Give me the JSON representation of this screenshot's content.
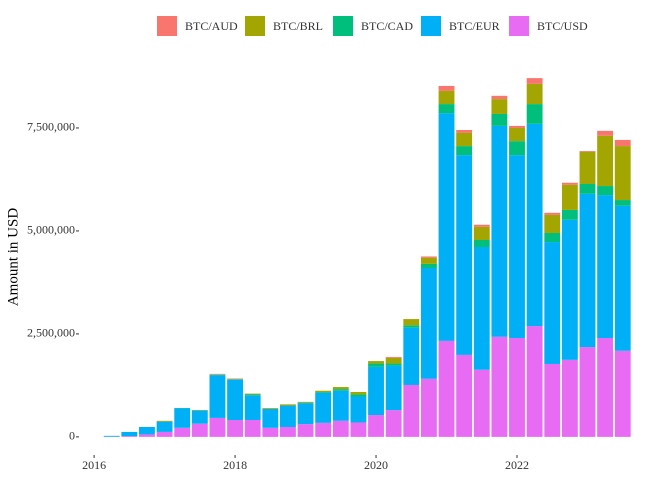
{
  "chart_data": {
    "type": "stacked_bar",
    "y_label": "Amount in USD",
    "x": [
      2016.25,
      2016.5,
      2016.75,
      2017,
      2017.25,
      2017.5,
      2017.75,
      2018,
      2018.25,
      2018.5,
      2018.75,
      2019,
      2019.25,
      2019.5,
      2019.75,
      2020,
      2020.25,
      2020.5,
      2020.75,
      2021,
      2021.25,
      2021.5,
      2021.75,
      2022,
      2022.25,
      2022.5,
      2022.75,
      2023,
      2023.25,
      2023.5
    ],
    "series": [
      {
        "name": "BTC/AUD",
        "color": "#F8766D",
        "values": [
          0,
          0,
          0,
          0,
          0,
          0,
          10000,
          10000,
          0,
          0,
          0,
          0,
          0,
          0,
          0,
          0,
          20000,
          0,
          30000,
          120000,
          70000,
          50000,
          80000,
          50000,
          140000,
          50000,
          50000,
          20000,
          120000,
          150000
        ]
      },
      {
        "name": "BTC/BRL",
        "color": "#A3A500",
        "values": [
          0,
          0,
          0,
          20000,
          0,
          10000,
          10000,
          10000,
          20000,
          20000,
          30000,
          20000,
          30000,
          50000,
          60000,
          60000,
          140000,
          150000,
          150000,
          320000,
          320000,
          320000,
          360000,
          320000,
          490000,
          440000,
          610000,
          780000,
          1220000,
          1310000
        ]
      },
      {
        "name": "BTC/CAD",
        "color": "#00BF7D",
        "values": [
          0,
          0,
          0,
          0,
          10000,
          0,
          10000,
          10000,
          20000,
          0,
          0,
          10000,
          20000,
          40000,
          50000,
          80000,
          50000,
          60000,
          100000,
          220000,
          220000,
          170000,
          290000,
          340000,
          480000,
          220000,
          240000,
          240000,
          220000,
          140000
        ]
      },
      {
        "name": "BTC/EUR",
        "color": "#00B0F6",
        "values": [
          20000,
          100000,
          180000,
          250000,
          470000,
          320000,
          1040000,
          980000,
          600000,
          460000,
          520000,
          510000,
          730000,
          730000,
          630000,
          1170000,
          1080000,
          1390000,
          2690000,
          5530000,
          4850000,
          2980000,
          5120000,
          4440000,
          4910000,
          2960000,
          3400000,
          3720000,
          3470000,
          3520000
        ]
      },
      {
        "name": "BTC/USD",
        "color": "#E76BF3",
        "values": [
          5000,
          20000,
          60000,
          120000,
          220000,
          320000,
          460000,
          410000,
          410000,
          220000,
          240000,
          310000,
          340000,
          390000,
          350000,
          530000,
          650000,
          1260000,
          1410000,
          2330000,
          1990000,
          1630000,
          2430000,
          2400000,
          2690000,
          1770000,
          1870000,
          2180000,
          2400000,
          2090000
        ]
      }
    ],
    "xlim": [
      2015.8,
      2023.745
    ],
    "xticks": [
      2016,
      2018,
      2020,
      2022
    ],
    "ylim": [
      -440000,
      9150000
    ],
    "yticks": [
      {
        "value": 0,
        "label": "0"
      },
      {
        "value": 2500000,
        "label": "2,500,000"
      },
      {
        "value": 5000000,
        "label": "5,000,000"
      },
      {
        "value": 7500000,
        "label": "7,500,000"
      }
    ],
    "grid": false,
    "legend": "top"
  }
}
